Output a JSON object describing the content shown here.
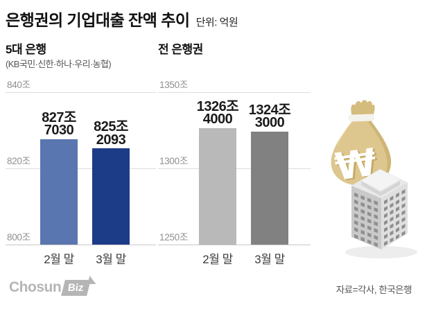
{
  "header": {
    "title": "은행권의 기업대출 잔액 추이",
    "unit": "단위: 억원"
  },
  "chart_data": [
    {
      "type": "bar",
      "title": "5대 은행",
      "note": "(KB국민·신한·하나·우리·농협)",
      "categories": [
        "2월 말",
        "3월 말"
      ],
      "values": [
        827.703,
        825.2093
      ],
      "value_unit": "조원",
      "value_labels": [
        [
          "827조",
          "7030"
        ],
        [
          "825조",
          "2093"
        ]
      ],
      "ylim": [
        800,
        840
      ],
      "yticks": [
        {
          "v": 840,
          "label": "840조"
        },
        {
          "v": 820,
          "label": "820조"
        },
        {
          "v": 800,
          "label": "800조"
        }
      ],
      "bar_colors": [
        "#5a76b0",
        "#1d3c87"
      ],
      "grid": true,
      "legend": "none"
    },
    {
      "type": "bar",
      "title": "전 은행권",
      "note": "",
      "categories": [
        "2월 말",
        "3월 말"
      ],
      "values": [
        1326.4,
        1324.3
      ],
      "value_unit": "조원",
      "value_labels": [
        [
          "1326조",
          "4000"
        ],
        [
          "1324조",
          "3000"
        ]
      ],
      "ylim": [
        1250,
        1350
      ],
      "yticks": [
        {
          "v": 1350,
          "label": "1350조"
        },
        {
          "v": 1300,
          "label": "1300조"
        },
        {
          "v": 1250,
          "label": "1250조"
        }
      ],
      "bar_colors": [
        "#b9b9b9",
        "#818181"
      ],
      "grid": true,
      "legend": "none"
    }
  ],
  "illustration": {
    "won_symbol": "₩"
  },
  "footer": {
    "logo_chosun": "Chosun",
    "logo_biz": "Biz",
    "source": "자료=각사, 한국은행"
  },
  "colors": {
    "bar_light_blue": "#5a76b0",
    "bar_dark_blue": "#1d3c87",
    "bar_light_gray": "#b9b9b9",
    "bar_dark_gray": "#818181",
    "gridline": "#dcdcdc",
    "money_bag": "#ddc78e"
  }
}
